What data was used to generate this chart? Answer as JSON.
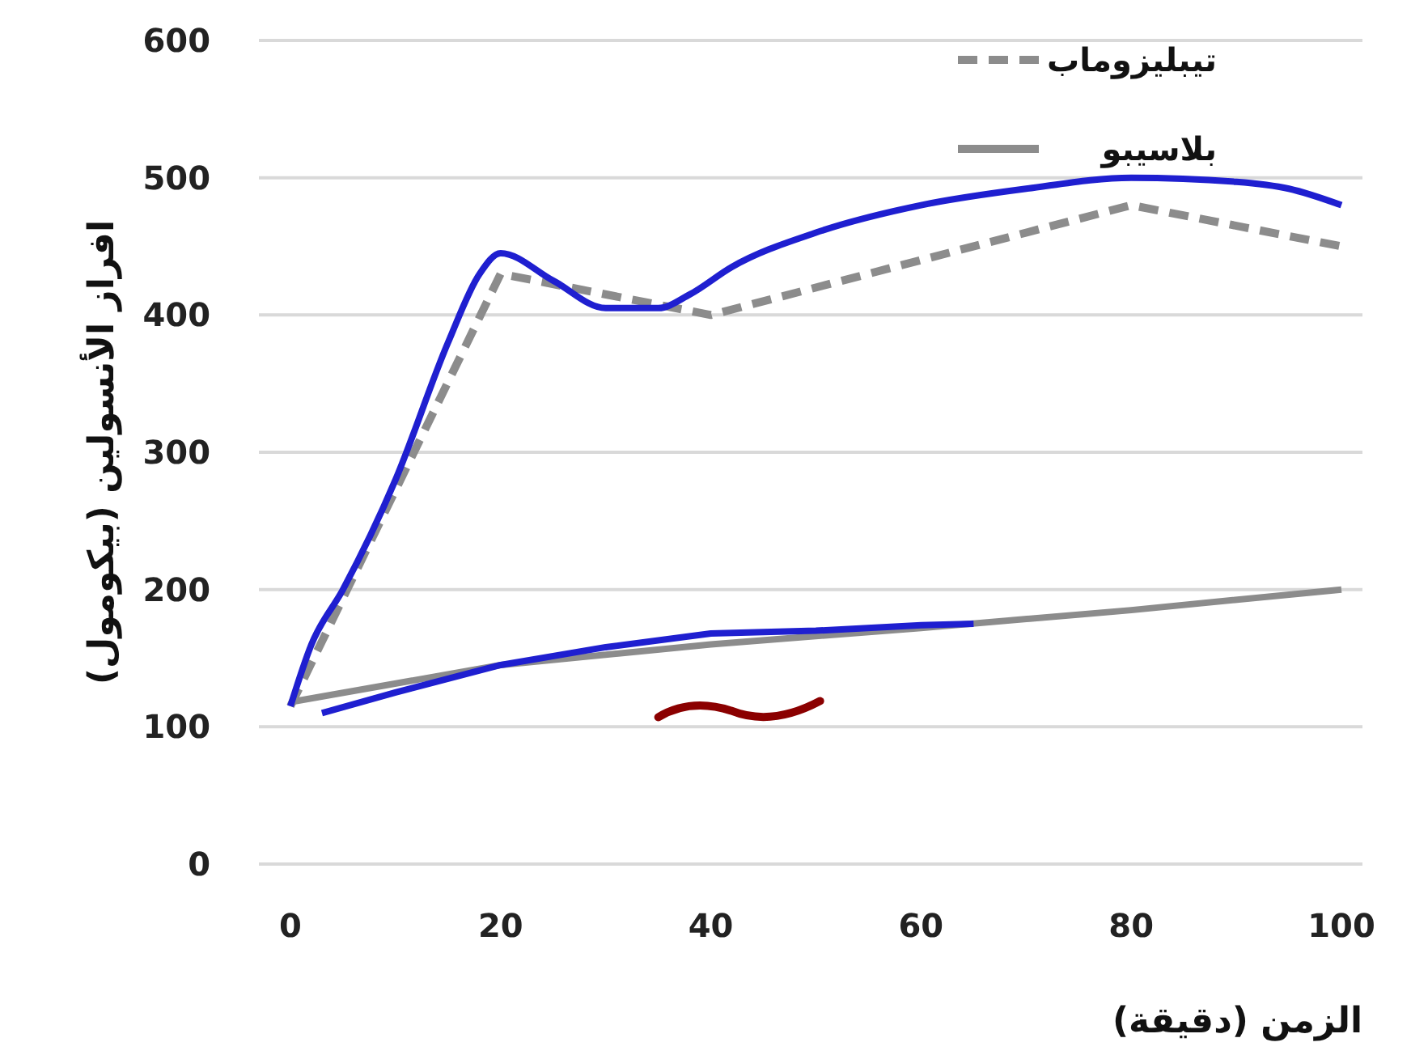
{
  "chart_data": {
    "type": "line",
    "xlabel": "الزمن (دقيقة)",
    "ylabel": "افراز الأنسولين (بيكومول)",
    "xlim": [
      -3,
      102
    ],
    "xticks": [
      0,
      20,
      40,
      60,
      80,
      100
    ],
    "ylim": [
      0,
      600
    ],
    "yticks": [
      0,
      100,
      200,
      300,
      400,
      500,
      600
    ],
    "grid": "y",
    "legend": "top right",
    "series": [
      {
        "name": "تيبليزوماب",
        "color": "#8c8c8c",
        "line_style": "dashed",
        "x": [
          0,
          20,
          40,
          80,
          100
        ],
        "values": [
          115,
          430,
          400,
          480,
          450
        ]
      },
      {
        "name": "بلاسيبو",
        "color": "#8c8c8c",
        "line_style": "solid",
        "x": [
          0,
          20,
          40,
          60,
          80,
          100
        ],
        "values": [
          118,
          145,
          160,
          172,
          185,
          200
        ]
      },
      {
        "color": "#1f1fd0",
        "line_style": "solid",
        "x": [
          0,
          2,
          5,
          10,
          15,
          18,
          20,
          25,
          30,
          35,
          38,
          42,
          50,
          60,
          70,
          80,
          90,
          95,
          100
        ],
        "values": [
          115,
          160,
          200,
          280,
          380,
          430,
          445,
          425,
          405,
          405,
          415,
          435,
          460,
          480,
          492,
          500,
          497,
          492,
          480
        ]
      },
      {
        "color": "#1f1fd0",
        "line_style": "solid",
        "x": [
          3,
          10,
          20,
          30,
          40,
          50,
          60,
          65
        ],
        "values": [
          110,
          125,
          145,
          158,
          168,
          170,
          174,
          175
        ]
      }
    ]
  }
}
